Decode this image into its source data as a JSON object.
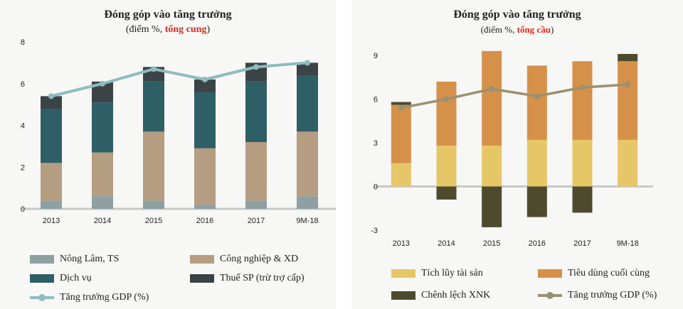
{
  "colors": {
    "nong_lam": "#8ea0a2",
    "cong_nghiep": "#b59d82",
    "dich_vu": "#2f5f66",
    "thue_sp": "#3c4346",
    "gdp_left": "#8ebcc0",
    "tich_luy": "#e6c767",
    "tieu_dung": "#d5914a",
    "chenh_lech": "#4e4a2e",
    "gdp_right": "#9b9170"
  },
  "chart_data": [
    {
      "type": "bar",
      "stacked": true,
      "title": "Đóng góp vào tăng trưởng",
      "subtitle_prefix": "(điểm %, ",
      "subtitle_highlight": "tổng cung",
      "subtitle_suffix": ")",
      "categories": [
        "2013",
        "2014",
        "2015",
        "2016",
        "2017",
        "9M-18"
      ],
      "ylim": [
        0,
        8
      ],
      "yticks": [
        "0",
        "2",
        "4",
        "6",
        "8"
      ],
      "series": [
        {
          "name": "Nông Lâm, TS",
          "color_key": "nong_lam",
          "values": [
            0.4,
            0.6,
            0.4,
            0.2,
            0.4,
            0.6
          ]
        },
        {
          "name": "Công nghiệp & XD",
          "color_key": "cong_nghiep",
          "values": [
            1.8,
            2.1,
            3.3,
            2.7,
            2.8,
            3.1
          ]
        },
        {
          "name": "Dịch vụ",
          "color_key": "dich_vu",
          "values": [
            2.6,
            2.4,
            2.4,
            2.7,
            2.9,
            2.7
          ]
        },
        {
          "name": "Thuế SP (trừ trợ cấp)",
          "color_key": "thue_sp",
          "values": [
            0.6,
            1.0,
            0.7,
            0.6,
            0.9,
            0.6
          ]
        }
      ],
      "line": {
        "name": "Tăng trưởng GDP (%)",
        "color_key": "gdp_left",
        "values": [
          5.4,
          6.0,
          6.7,
          6.2,
          6.8,
          7.0
        ]
      }
    },
    {
      "type": "bar",
      "stacked": true,
      "title": "Đóng góp vào tăng trưởng",
      "subtitle_prefix": "(điểm %, ",
      "subtitle_highlight": "tổng cầu",
      "subtitle_suffix": ")",
      "categories": [
        "2013",
        "2014",
        "2015",
        "2016",
        "2017",
        "9M-18"
      ],
      "ylim": [
        -3,
        9
      ],
      "yticks": [
        "-3",
        "0",
        "3",
        "6",
        "9"
      ],
      "series": [
        {
          "name": "Tích lũy tài sản",
          "color_key": "tich_luy",
          "values": [
            1.6,
            2.8,
            2.8,
            3.2,
            3.2,
            3.2
          ]
        },
        {
          "name": "Tiêu dùng cuối cùng",
          "color_key": "tieu_dung",
          "values": [
            4.0,
            4.4,
            6.5,
            5.1,
            5.4,
            5.4
          ]
        },
        {
          "name": "Chênh lệch XNK",
          "color_key": "chenh_lech",
          "values": [
            0.2,
            -0.9,
            -2.8,
            -2.1,
            -1.8,
            0.5
          ]
        }
      ],
      "line": {
        "name": "Tăng trưởng GDP (%)",
        "color_key": "gdp_right",
        "values": [
          5.4,
          6.0,
          6.7,
          6.2,
          6.8,
          7.0
        ]
      }
    }
  ]
}
